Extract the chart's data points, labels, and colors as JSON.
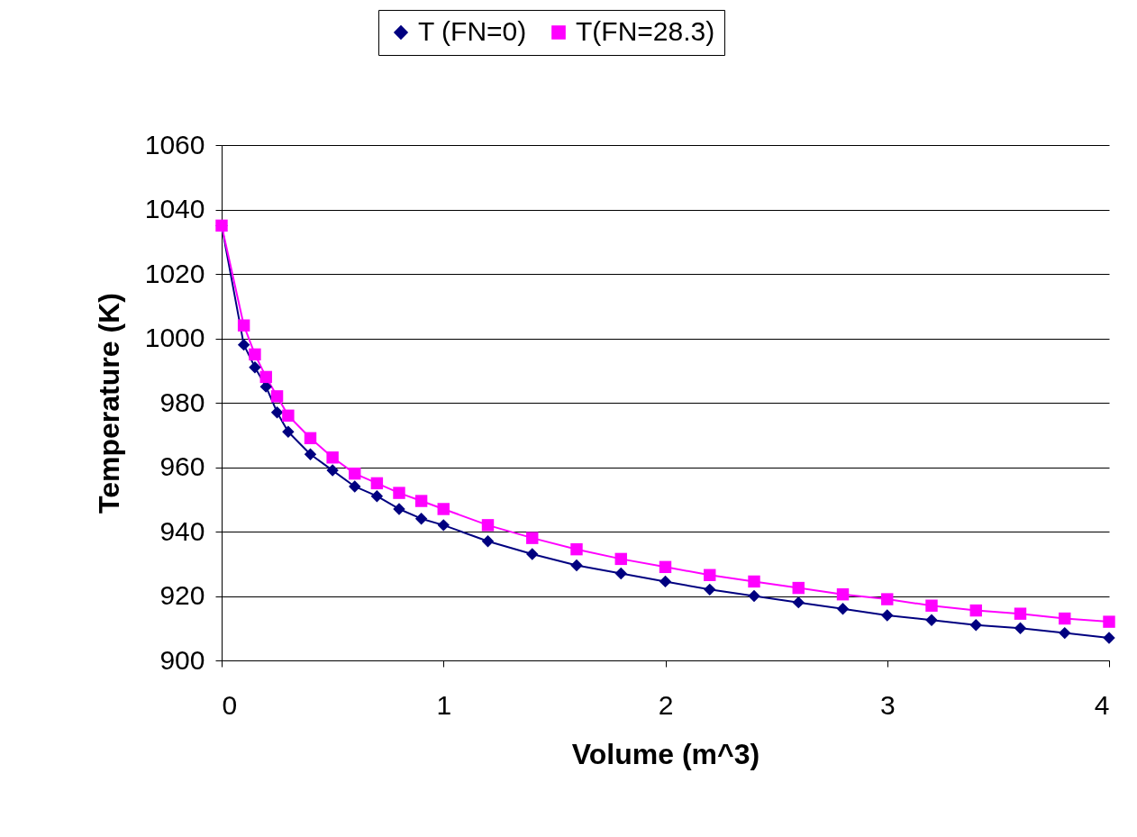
{
  "chart_data": {
    "type": "line",
    "xlabel": "Volume (m^3)",
    "ylabel": "Temperature (K)",
    "x": [
      0,
      0.1,
      0.15,
      0.2,
      0.25,
      0.3,
      0.4,
      0.5,
      0.6,
      0.7,
      0.8,
      0.9,
      1.0,
      1.2,
      1.4,
      1.6,
      1.8,
      2.0,
      2.2,
      2.4,
      2.6,
      2.8,
      3.0,
      3.2,
      3.4,
      3.6,
      3.8,
      4.0
    ],
    "series": [
      {
        "name": "T (FN=0)",
        "color": "#000080",
        "marker": "diamond",
        "values": [
          1035,
          998,
          991,
          985,
          977,
          971,
          964,
          959,
          954,
          951,
          947,
          944,
          942,
          937,
          933,
          929.5,
          927,
          924.5,
          922,
          920,
          918,
          916,
          914,
          912.5,
          911,
          910,
          908.5,
          907
        ]
      },
      {
        "name": "T(FN=28.3)",
        "color": "#ff00ff",
        "marker": "square",
        "values": [
          1035,
          1004,
          995,
          988,
          982,
          976,
          969,
          963,
          958,
          955,
          952,
          949.5,
          947,
          942,
          938,
          934.5,
          931.5,
          929,
          926.5,
          924.5,
          922.5,
          920.5,
          919,
          917,
          915.5,
          914.5,
          913,
          912
        ]
      }
    ],
    "xlim": [
      0,
      4
    ],
    "xticks": [
      0,
      1,
      2,
      3,
      4
    ],
    "ylim": [
      900,
      1060
    ],
    "yticks": [
      900,
      920,
      940,
      960,
      980,
      1000,
      1020,
      1040,
      1060
    ],
    "grid": "y",
    "legend": "top",
    "line_style": "solid"
  }
}
